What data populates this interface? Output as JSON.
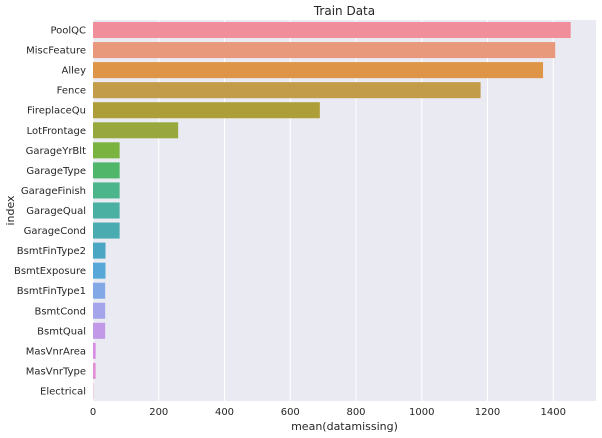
{
  "chart_data": {
    "type": "bar",
    "orientation": "horizontal",
    "title": "Train Data",
    "xlabel": "mean(datamissing)",
    "ylabel": "index",
    "xlim": [
      0,
      1530
    ],
    "xticks": [
      0,
      200,
      400,
      600,
      800,
      1000,
      1200,
      1400
    ],
    "grid": true,
    "style": {
      "plot_background": "#EAEAF2",
      "grid_color": "#FFFFFF"
    },
    "categories": [
      "PoolQC",
      "MiscFeature",
      "Alley",
      "Fence",
      "FireplaceQu",
      "LotFrontage",
      "GarageYrBlt",
      "GarageType",
      "GarageFinish",
      "GarageQual",
      "GarageCond",
      "BsmtFinType2",
      "BsmtExposure",
      "BsmtFinType1",
      "BsmtCond",
      "BsmtQual",
      "MasVnrArea",
      "MasVnrType",
      "Electrical"
    ],
    "values": [
      1453,
      1406,
      1369,
      1179,
      690,
      259,
      81,
      81,
      81,
      81,
      81,
      38,
      38,
      37,
      37,
      37,
      8,
      8,
      1
    ],
    "colors": [
      "#F08E9B",
      "#E8997C",
      "#DE9548",
      "#C39C4A",
      "#AD9E3A",
      "#98A83F",
      "#7AB340",
      "#4FB66A",
      "#4CB58C",
      "#4AB0A1",
      "#4AABB1",
      "#4AA6C3",
      "#57A8D8",
      "#82A9E6",
      "#A4A5EA",
      "#C299E8",
      "#D88BE5",
      "#E48FD3",
      "#EC8FB8"
    ]
  }
}
